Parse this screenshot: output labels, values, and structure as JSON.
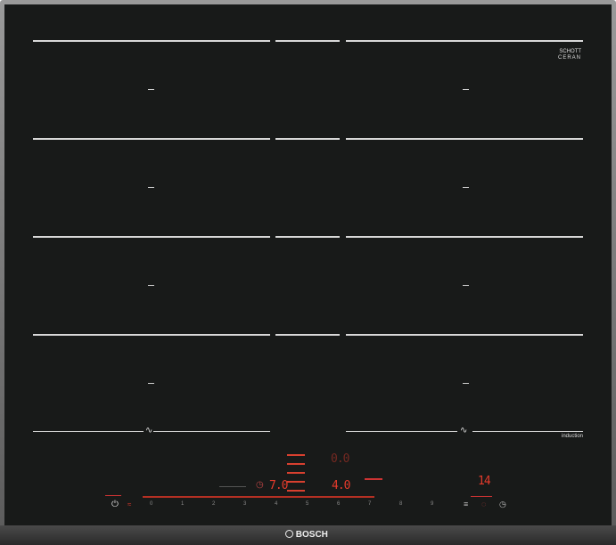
{
  "brand": "BOSCH",
  "glass_brand": {
    "line1": "SCHOTT",
    "line2": "CERAN"
  },
  "induction_label": "induction",
  "wave_symbol": "∿",
  "zone_dash": "–",
  "displays": {
    "top": "0.0",
    "timer": "7.0",
    "zone": "4.0",
    "right": "14"
  },
  "timer_icon": "◷",
  "power_icon": "⏻",
  "slider_digits": [
    "0",
    "1",
    "2",
    "3",
    "4",
    "5",
    "6",
    "7",
    "8",
    "9"
  ],
  "right_icons": [
    "≡",
    "◌",
    "◷"
  ],
  "accent_color": "#e23a2c"
}
